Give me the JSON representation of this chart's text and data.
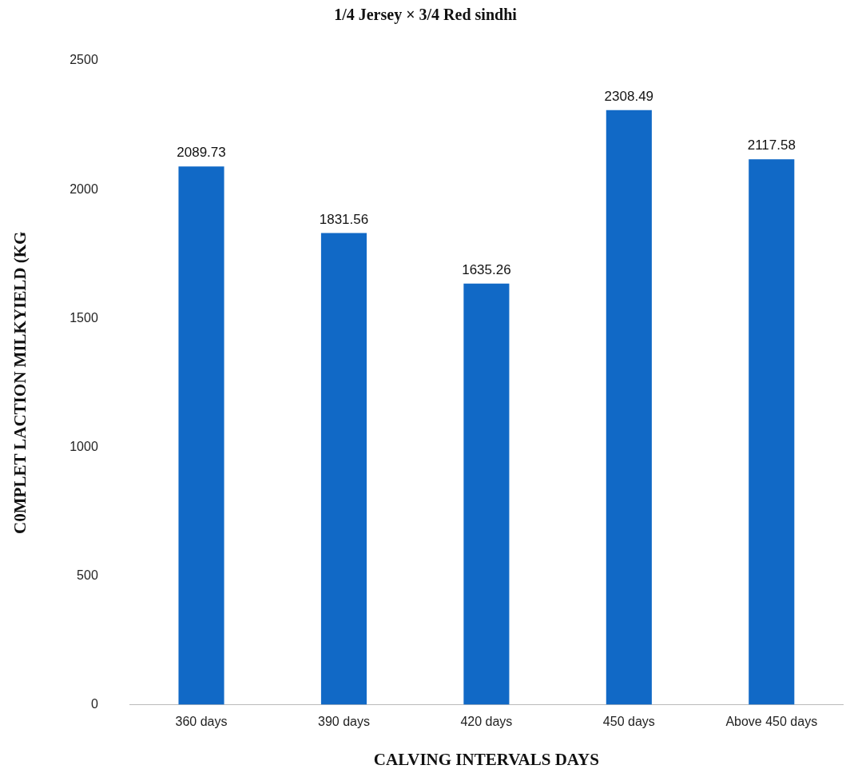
{
  "chart_data": {
    "type": "bar",
    "title": "1/4 Jersey × 3/4 Red sindhi",
    "xlabel": "CALVING INTERVALS DAYS",
    "ylabel": "C0MPLET LACTION MILKYIELD (KG",
    "categories": [
      "360 days",
      "390 days",
      "420 days",
      "450 days",
      "Above 450 days"
    ],
    "values": [
      2089.73,
      1831.56,
      1635.26,
      2308.49,
      2117.58
    ],
    "color": "#1169c6",
    "ylim": [
      0,
      2500
    ],
    "yticks": [
      0,
      500,
      1000,
      1500,
      2000,
      2500
    ],
    "grid": false,
    "data_labels": true,
    "legend": false
  }
}
